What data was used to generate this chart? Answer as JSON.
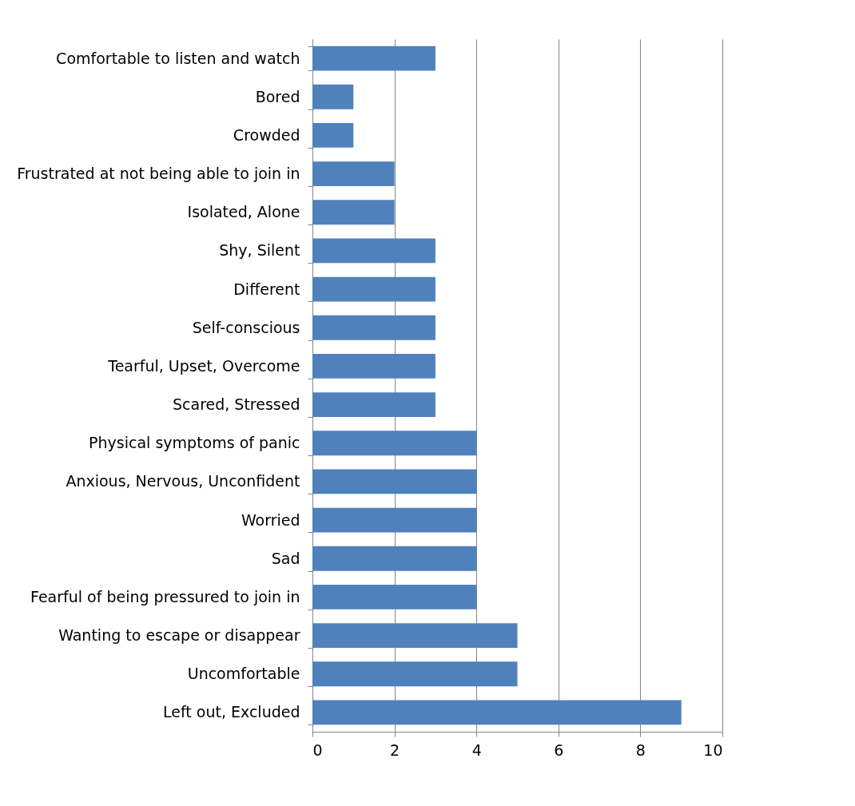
{
  "chart_data": {
    "type": "bar",
    "orientation": "horizontal",
    "categories": [
      "Comfortable to listen and watch",
      "Bored",
      "Crowded",
      "Frustrated at not being able to join in",
      "Isolated, Alone",
      "Shy, Silent",
      "Different",
      "Self-conscious",
      "Tearful, Upset, Overcome",
      "Scared, Stressed",
      "Physical symptoms of panic",
      "Anxious, Nervous, Unconfident",
      "Worried",
      "Sad",
      "Fearful of being pressured to join in",
      "Wanting to escape or disappear",
      "Uncomfortable",
      "Left out, Excluded"
    ],
    "values": [
      3,
      1,
      1,
      2,
      2,
      3,
      3,
      3,
      3,
      3,
      4,
      4,
      4,
      4,
      4,
      5,
      5,
      9
    ],
    "color": "#4f81bd",
    "xlim": [
      0,
      10
    ],
    "xticks": [
      0,
      2,
      4,
      6,
      8,
      10
    ],
    "grid": "x"
  }
}
